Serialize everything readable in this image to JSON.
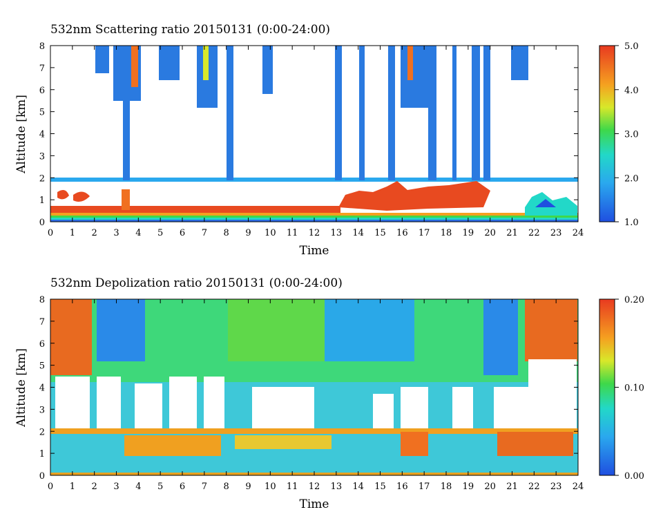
{
  "chart_data": [
    {
      "type": "heatmap",
      "title": "532nm Scattering ratio  20150131 (0:00-24:00)",
      "xlabel": "Time",
      "ylabel": "Altitude [km]",
      "xlim": [
        0,
        24
      ],
      "ylim": [
        0,
        8
      ],
      "x_ticks": [
        "0",
        "1",
        "2",
        "3",
        "4",
        "5",
        "6",
        "7",
        "8",
        "9",
        "10",
        "11",
        "12",
        "13",
        "14",
        "15",
        "16",
        "17",
        "18",
        "19",
        "20",
        "21",
        "22",
        "23",
        "24"
      ],
      "y_ticks": [
        "0",
        "1",
        "2",
        "3",
        "4",
        "5",
        "6",
        "7",
        "8"
      ],
      "colorbar": {
        "range": [
          1.0,
          5.0
        ],
        "tick_labels": [
          "1.0",
          "2.0",
          "3.0",
          "4.0",
          "5.0"
        ],
        "colormap": "rainbow"
      },
      "grid": false
    },
    {
      "type": "heatmap",
      "title": "532nm Depolization ratio  20150131 (0:00-24:00)",
      "xlabel": "Time",
      "ylabel": "Altitude [km]",
      "xlim": [
        0,
        24
      ],
      "ylim": [
        0,
        8
      ],
      "x_ticks": [
        "0",
        "1",
        "2",
        "3",
        "4",
        "5",
        "6",
        "7",
        "8",
        "9",
        "10",
        "11",
        "12",
        "13",
        "14",
        "15",
        "16",
        "17",
        "18",
        "19",
        "20",
        "21",
        "22",
        "23",
        "24"
      ],
      "y_ticks": [
        "0",
        "1",
        "2",
        "3",
        "4",
        "5",
        "6",
        "7",
        "8"
      ],
      "colorbar": {
        "range": [
          0.0,
          0.2
        ],
        "tick_labels": [
          "0.00",
          "0.10",
          "0.20"
        ],
        "colormap": "rainbow"
      },
      "grid": false
    }
  ]
}
